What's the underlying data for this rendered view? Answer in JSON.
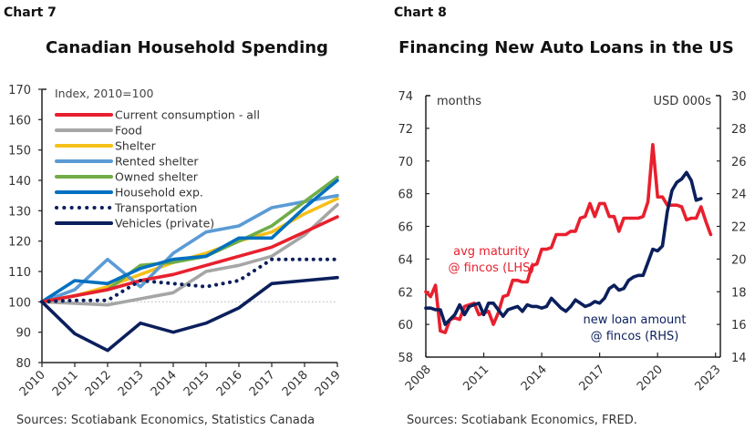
{
  "chart_data": [
    {
      "type": "line",
      "label": "Chart 7",
      "title": "Canadian Household Spending",
      "subtitle": "Index, 2010=100",
      "xlabel": "",
      "ylabel": "",
      "x": [
        "2010",
        "2011",
        "2012",
        "2013",
        "2014",
        "2015",
        "2016",
        "2017",
        "2018",
        "2019"
      ],
      "ylim": [
        80,
        170
      ],
      "yticks": [
        80,
        90,
        100,
        110,
        120,
        130,
        140,
        150,
        160,
        170
      ],
      "legend_position": "top-left",
      "baseline": 100,
      "series": [
        {
          "name": "Current consumption - all",
          "color": "#e8202e",
          "style": "solid",
          "values": [
            100,
            102,
            104,
            107,
            109,
            112,
            115,
            118,
            123,
            128
          ]
        },
        {
          "name": "Food",
          "color": "#a6a6a6",
          "style": "solid",
          "values": [
            100,
            99.5,
            99,
            101,
            103,
            110,
            112,
            115,
            122,
            132
          ]
        },
        {
          "name": "Shelter",
          "color": "#f6c018",
          "style": "solid",
          "values": [
            100,
            102,
            105,
            109,
            113,
            116,
            120,
            123,
            129,
            134
          ]
        },
        {
          "name": "Rented shelter",
          "color": "#5b9bd5",
          "style": "solid",
          "values": [
            100,
            104,
            114,
            105,
            116,
            123,
            125,
            131,
            133,
            135
          ]
        },
        {
          "name": "Owned shelter",
          "color": "#70ad47",
          "style": "solid",
          "values": [
            100,
            102,
            104,
            112,
            113,
            115,
            120,
            125,
            133,
            141
          ]
        },
        {
          "name": "Household exp.",
          "color": "#0070c0",
          "style": "solid",
          "values": [
            100,
            107,
            106,
            111,
            114,
            115,
            121,
            121,
            131,
            140
          ]
        },
        {
          "name": "Transportation",
          "color": "#0b1f5c",
          "style": "dotted",
          "values": [
            100,
            100.5,
            100.5,
            107,
            106,
            105,
            107,
            114,
            114,
            114
          ]
        },
        {
          "name": "Vehicles (private)",
          "color": "#0b1f5c",
          "style": "solid",
          "values": [
            100,
            89.5,
            84,
            93,
            90,
            93,
            98,
            106,
            107,
            108
          ]
        }
      ],
      "source": "Sources: Scotiabank Economics, Statistics Canada"
    },
    {
      "type": "line",
      "label": "Chart 8",
      "title": "Financing New Auto Loans in the US",
      "xlabel": "",
      "ylabel_left": "months",
      "ylabel_right": "USD 000s",
      "xticks": [
        "2008",
        "2011",
        "2014",
        "2017",
        "2020",
        "2023"
      ],
      "x_start": 2008.0,
      "x_step": 0.25,
      "xlim": [
        2008,
        2023.25
      ],
      "ylim_left": [
        58,
        74
      ],
      "yticks_left": [
        58,
        60,
        62,
        64,
        66,
        68,
        70,
        72,
        74
      ],
      "ylim_right": [
        14,
        30
      ],
      "yticks_right": [
        14,
        16,
        18,
        20,
        22,
        24,
        26,
        28,
        30
      ],
      "series": [
        {
          "name": "avg maturity @ fincos (LHS)",
          "axis": "left",
          "color": "#e8202e",
          "label_lines": [
            "avg maturity",
            "@ fincos (LHS)"
          ],
          "values": [
            62.0,
            61.7,
            62.4,
            59.6,
            59.5,
            60.3,
            60.4,
            60.3,
            61.1,
            61.2,
            61.3,
            60.6,
            60.7,
            60.8,
            60.0,
            60.7,
            61.7,
            61.8,
            62.7,
            62.7,
            62.6,
            62.6,
            63.6,
            63.7,
            64.6,
            64.6,
            64.7,
            65.5,
            65.5,
            65.5,
            65.7,
            65.7,
            66.5,
            66.6,
            67.4,
            66.6,
            67.4,
            67.4,
            66.6,
            66.6,
            65.7,
            66.5,
            66.5,
            66.5,
            66.5,
            66.6,
            67.5,
            71.0,
            67.8,
            67.8,
            67.3,
            67.3,
            67.3,
            67.2,
            66.4,
            66.5,
            66.5,
            67.2,
            66.3,
            65.5
          ]
        },
        {
          "name": "new loan amount @ fincos (RHS)",
          "axis": "right",
          "color": "#0b1f5c",
          "label_lines": [
            "new loan amount",
            "@ fincos  (RHS)"
          ],
          "values": [
            17.0,
            17.0,
            16.9,
            16.9,
            16.0,
            16.3,
            16.6,
            17.2,
            16.6,
            17.1,
            17.2,
            17.3,
            16.6,
            17.3,
            17.3,
            16.9,
            16.5,
            16.9,
            17.0,
            17.1,
            16.8,
            17.2,
            17.1,
            17.1,
            17.0,
            17.1,
            17.6,
            17.3,
            17.0,
            16.8,
            17.1,
            17.5,
            17.3,
            17.1,
            17.2,
            17.4,
            17.3,
            17.6,
            18.2,
            18.4,
            18.1,
            18.2,
            18.7,
            18.9,
            19.0,
            19.0,
            19.8,
            20.6,
            20.5,
            20.8,
            22.9,
            24.2,
            24.7,
            24.9,
            25.3,
            24.8,
            23.6,
            23.7
          ]
        }
      ],
      "source": "Sources: Scotiabank Economics, FRED."
    }
  ]
}
